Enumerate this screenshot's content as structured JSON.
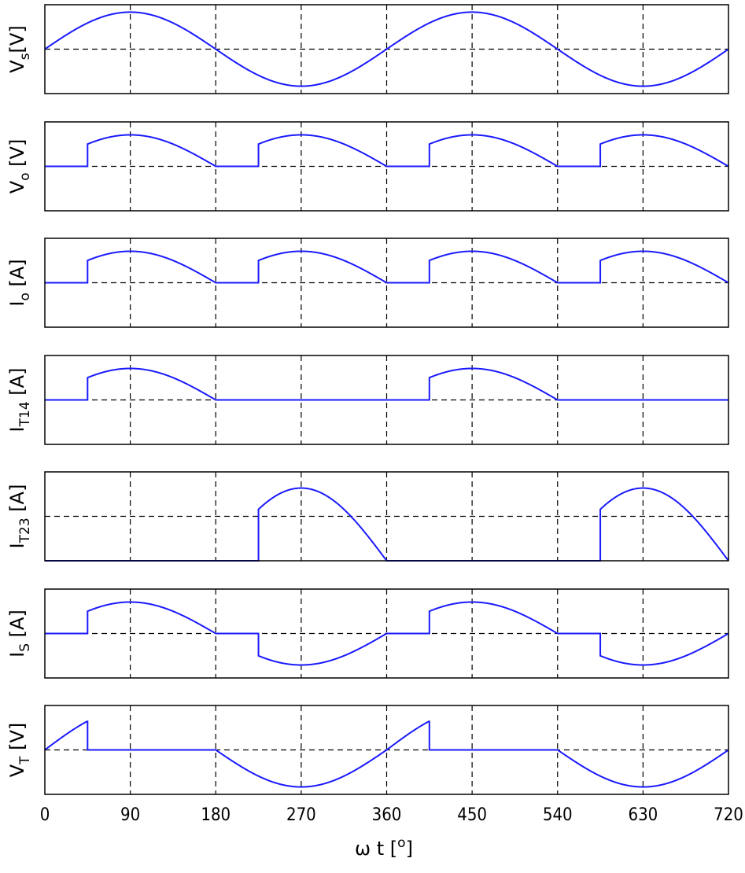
{
  "chart_data": {
    "type": "line",
    "x_unit_label": {
      "symbol": "ω t",
      "unit_open": " [",
      "unit_sup": "o",
      "unit_close": "]"
    },
    "xlim": [
      0,
      720
    ],
    "xticks": [
      "0",
      "90",
      "180",
      "270",
      "360",
      "450",
      "540",
      "630",
      "720"
    ],
    "grid": true,
    "line_color": "#1a1aff",
    "firing_angle_deg": 45,
    "panels": [
      {
        "id": "vs",
        "label": {
          "main": "V",
          "sub": "s",
          "unit": "[V]"
        },
        "ylim": [
          -1.2,
          1.2
        ],
        "hgrid": [
          0
        ],
        "signal": "vs"
      },
      {
        "id": "vo",
        "label": {
          "main": "V",
          "sub": "o",
          "unit": " [V]"
        },
        "ylim": [
          -1.2,
          1.2
        ],
        "hgrid": [
          0
        ],
        "signal": "vo"
      },
      {
        "id": "io",
        "label": {
          "main": "I",
          "sub": "o",
          "unit": " [A]"
        },
        "ylim": [
          -1.2,
          1.2
        ],
        "hgrid": [
          0
        ],
        "signal": "io"
      },
      {
        "id": "it14",
        "label": {
          "main": "I",
          "sub": "T14",
          "unit": " [A]"
        },
        "ylim": [
          -1.2,
          1.2
        ],
        "hgrid": [
          0
        ],
        "signal": "it14"
      },
      {
        "id": "it23",
        "label": {
          "main": "I",
          "sub": "T23",
          "unit": " [A]"
        },
        "ylim": [
          0,
          1.1
        ],
        "hgrid": [
          0.55
        ],
        "signal": "it23"
      },
      {
        "id": "is",
        "label": {
          "main": "I",
          "sub": "S",
          "unit": " [A]"
        },
        "ylim": [
          -1.2,
          1.2
        ],
        "hgrid": [
          0
        ],
        "signal": "is"
      },
      {
        "id": "vt",
        "label": {
          "main": "V",
          "sub": "T",
          "unit": " [V]"
        },
        "ylim": [
          -1.2,
          1.2
        ],
        "hgrid": [
          0
        ],
        "signal": "vt"
      }
    ]
  }
}
